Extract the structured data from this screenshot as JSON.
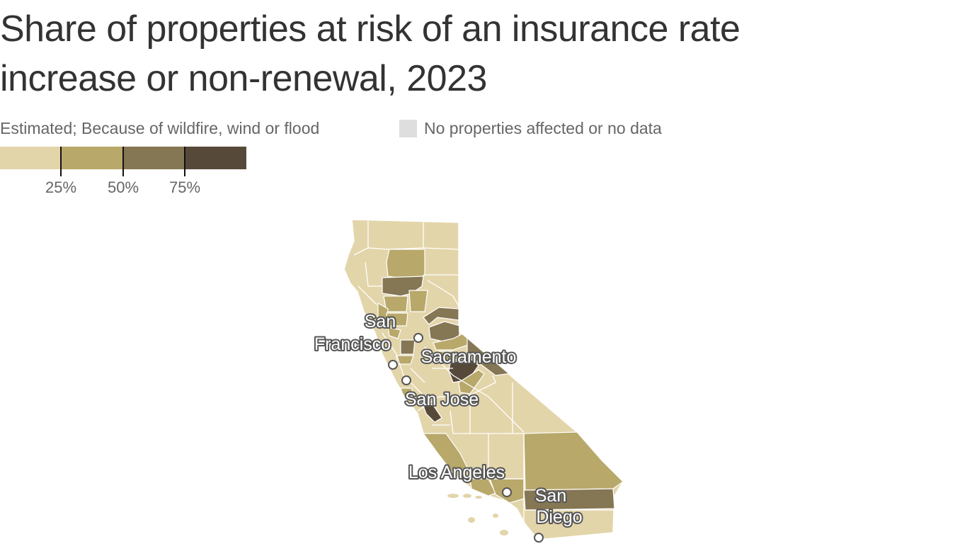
{
  "title": "Share of properties at risk of an insurance rate increase or non-renewal, 2023",
  "legend": {
    "description": "Estimated; Because of wildfire, wind or flood",
    "no_data_label": "No properties affected or no data",
    "ticks": [
      "25%",
      "50%",
      "75%"
    ],
    "bin_colors": [
      "#e3d5aa",
      "#b8a86a",
      "#857654",
      "#57493a"
    ],
    "no_data_color": "#dedede"
  },
  "cities": [
    {
      "name": "san-francisco",
      "lines": [
        "San",
        "Francisco"
      ]
    },
    {
      "name": "sacramento",
      "lines": [
        "Sacramento"
      ]
    },
    {
      "name": "san-jose",
      "lines": [
        "San Jose"
      ]
    },
    {
      "name": "los-angeles",
      "lines": [
        "Los Angeles"
      ]
    },
    {
      "name": "san-diego",
      "lines": [
        "San",
        "Diego"
      ]
    }
  ]
}
